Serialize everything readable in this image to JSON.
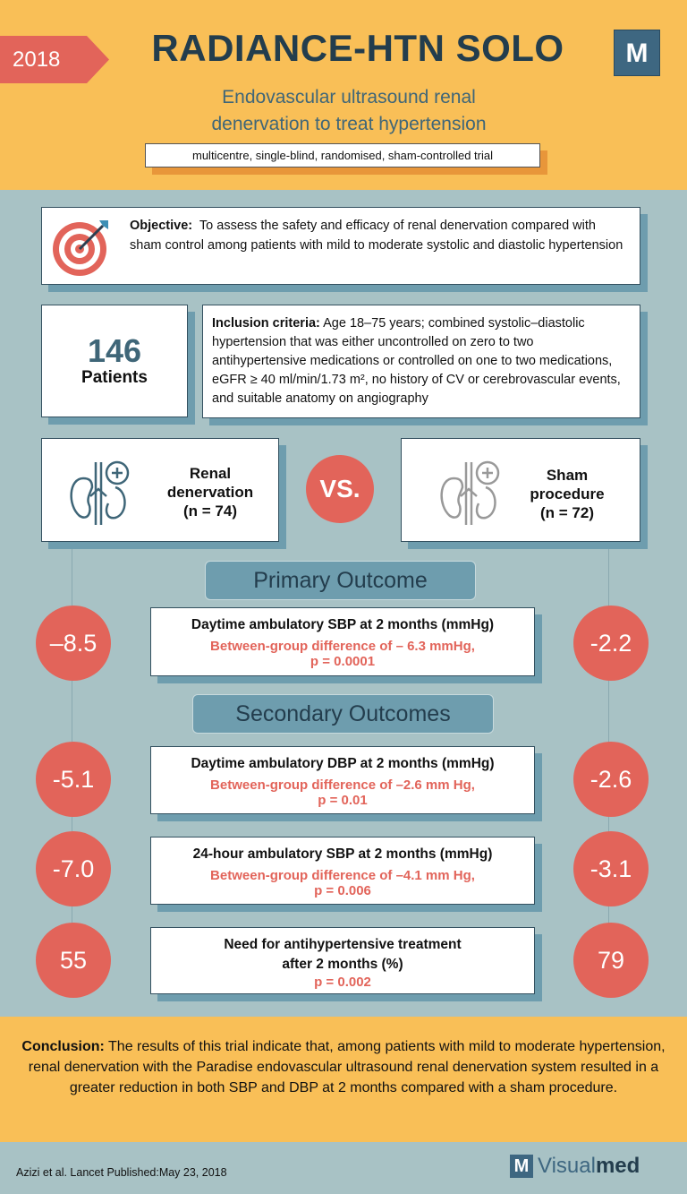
{
  "header": {
    "year": "2018",
    "title": "RADIANCE-HTN SOLO",
    "logo": "M",
    "subtitle_line1": "Endovascular ultrasound renal",
    "subtitle_line2": "denervation to treat hypertension",
    "design": "multicentre, single-blind, randomised, sham-controlled trial"
  },
  "objective": {
    "label": "Objective:",
    "text": "To assess the safety and efficacy of renal denervation compared with sham control among patients with mild to moderate systolic and diastolic hypertension",
    "icon": "target-icon"
  },
  "patients": {
    "count": "146",
    "label": "Patients"
  },
  "inclusion": {
    "label": "Inclusion criteria:",
    "text": "Age 18–75 years; combined systolic–diastolic hypertension that was either uncontrolled on zero to two antihypertensive medications or controlled on one to two medications, eGFR ≥ 40 ml/min/1.73 m², no history of CV or cerebrovascular events,  and suitable anatomy on angiography"
  },
  "arms": {
    "left": {
      "line1": "Renal",
      "line2": "denervation",
      "line3": "(n = 74)"
    },
    "vs": "VS.",
    "right": {
      "line1": "Sham",
      "line2": "procedure",
      "line3": "(n = 72)"
    }
  },
  "primary": {
    "heading": "Primary Outcome",
    "outcomes": [
      {
        "title": "Daytime ambulatory SBP at 2 months (mmHg)",
        "diff": "Between-group difference of – 6.3 mmHg,",
        "p": "p = 0.0001",
        "left": "–8.5",
        "right": "-2.2"
      }
    ]
  },
  "secondary": {
    "heading": "Secondary Outcomes",
    "outcomes": [
      {
        "title": "Daytime ambulatory DBP at 2 months (mmHg)",
        "diff": "Between-group difference of –2.6 mm Hg,",
        "p": "p = 0.01",
        "left": "-5.1",
        "right": "-2.6"
      },
      {
        "title": "24-hour ambulatory SBP at 2 months (mmHg)",
        "diff": "Between-group difference of –4.1 mm Hg,",
        "p": "p = 0.006",
        "left": "-7.0",
        "right": "-3.1"
      },
      {
        "title": "Need for antihypertensive treatment",
        "title2": "after 2 months (%)",
        "p": "p = 0.002",
        "left": "55",
        "right": "79"
      }
    ]
  },
  "conclusion": {
    "label": "Conclusion:",
    "text": "The results of this trial indicate that, among patients with mild to moderate hypertension, renal denervation with the Paradise endovascular ultrasound renal denervation system resulted in a greater reduction in both SBP and DBP at 2 months compared with a sham procedure."
  },
  "footer": {
    "citation": "Azizi et al. Lancet Published:May 23, 2018",
    "brand_logo": "M",
    "brand_a": "Visual",
    "brand_b": "med"
  },
  "colors": {
    "yellow": "#F9BF57",
    "red": "#E2645A",
    "navy": "#233D4D",
    "teal": "#6E9DAE",
    "background": "#A8C2C5"
  }
}
